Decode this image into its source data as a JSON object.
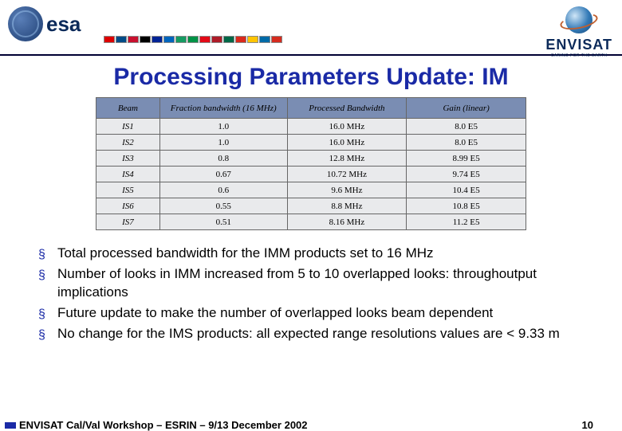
{
  "header": {
    "esa_text": "esa",
    "envisat_text": "ENVISAT",
    "envisat_tagline": "CARING FOR THE EARTH",
    "flag_colors": [
      "#d00",
      "#004b87",
      "#c8102e",
      "#000",
      "#002395",
      "#0065bd",
      "#169b62",
      "#009246",
      "#e30a17",
      "#ae1c28",
      "#006847",
      "#da291c",
      "#ffc400",
      "#006aa7",
      "#d52b1e"
    ]
  },
  "title": "Processing Parameters Update: IM",
  "table": {
    "columns": [
      "Beam",
      "Fraction bandwidth (16 MHz)",
      "Processed Bandwidth",
      "Gain (linear)"
    ],
    "col_widths": [
      "80px",
      "160px",
      "150px",
      "150px"
    ],
    "header_bg": "#7a8db3",
    "cell_bg": "#e9eaec",
    "rows": [
      [
        "IS1",
        "1.0",
        "16.0 MHz",
        "8.0 E5"
      ],
      [
        "IS2",
        "1.0",
        "16.0 MHz",
        "8.0 E5"
      ],
      [
        "IS3",
        "0.8",
        "12.8 MHz",
        "8.99 E5"
      ],
      [
        "IS4",
        "0.67",
        "10.72 MHz",
        "9.74 E5"
      ],
      [
        "IS5",
        "0.6",
        "9.6 MHz",
        "10.4 E5"
      ],
      [
        "IS6",
        "0.55",
        "8.8 MHz",
        "10.8 E5"
      ],
      [
        "IS7",
        "0.51",
        "8.16 MHz",
        "11.2 E5"
      ]
    ]
  },
  "bullets": [
    "Total processed bandwidth for the IMM products set to 16 MHz",
    "Number of looks in IMM increased from 5 to 10 overlapped looks: throughoutput implications",
    "Future update to make the number of overlapped looks beam dependent",
    "No change for the IMS products: all expected range resolutions values are < 9.33 m"
  ],
  "footer": {
    "text": "ENVISAT Cal/Val Workshop – ESRIN – 9/13 December 2002",
    "page": "10"
  },
  "colors": {
    "title": "#1a2aa6",
    "rule": "#000033"
  }
}
